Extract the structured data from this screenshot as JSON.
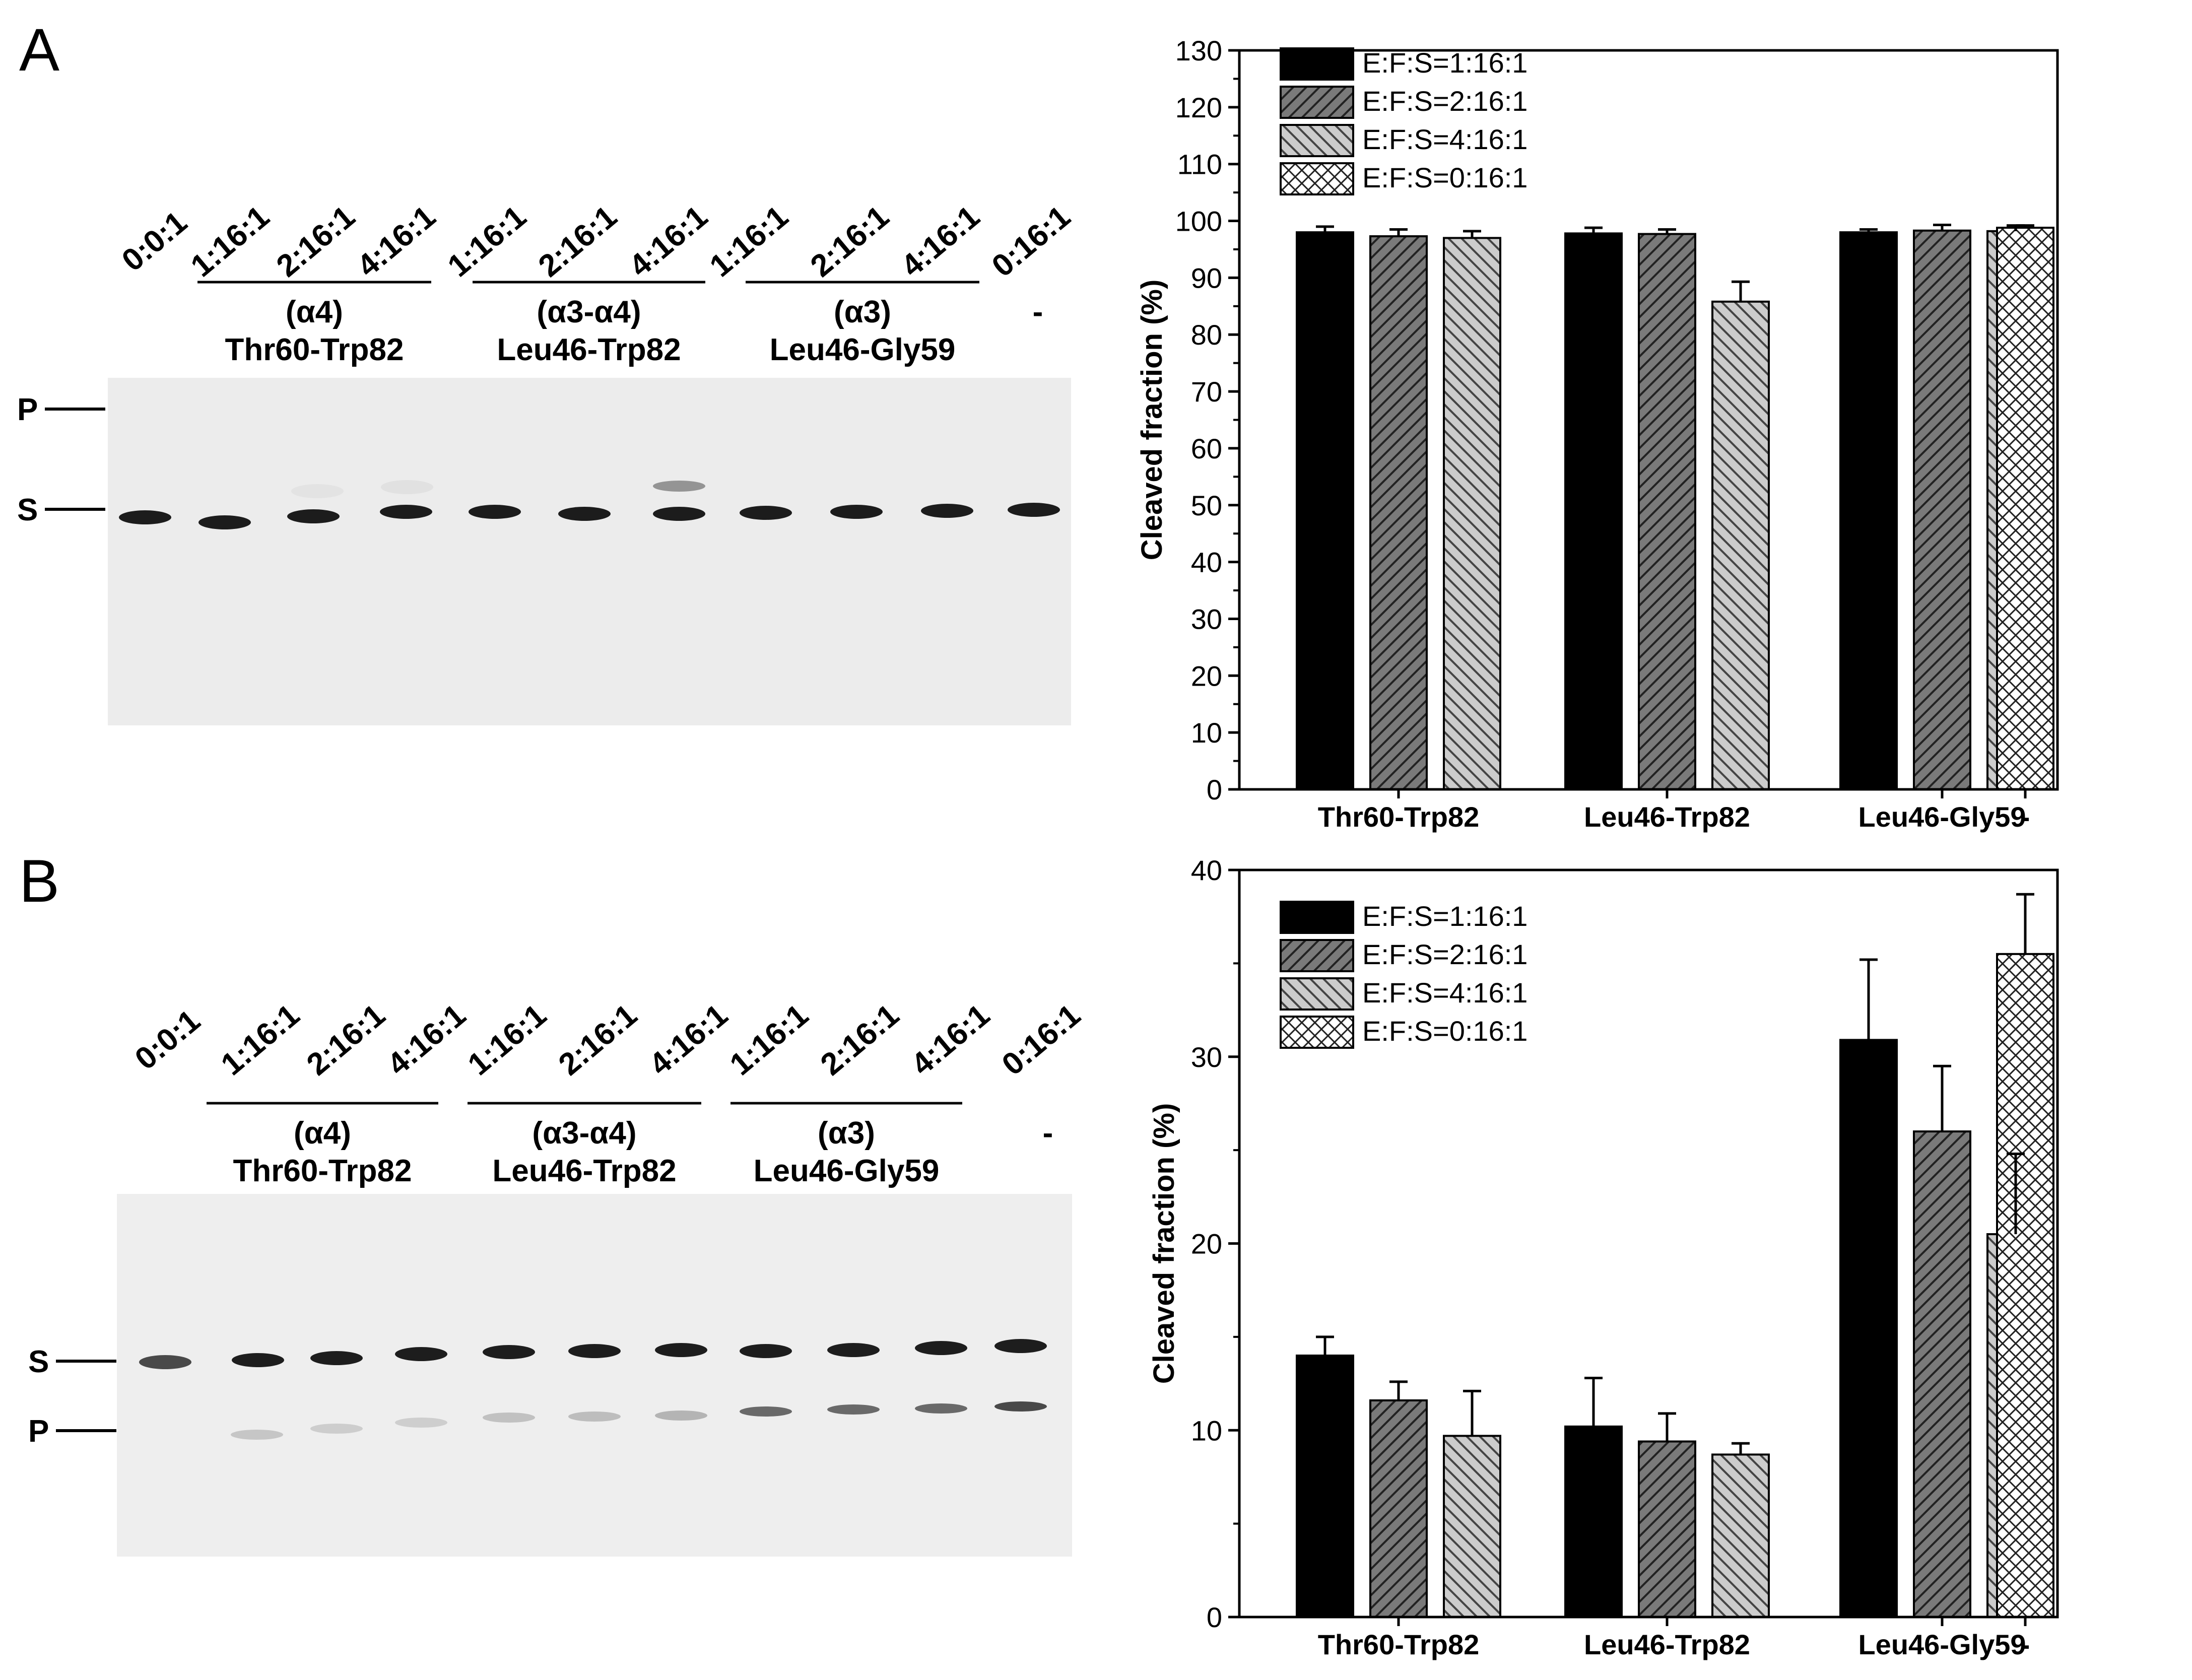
{
  "panels": [
    {
      "letter": "A",
      "gel": {
        "lane_labels": [
          "0:0:1",
          "1:16:1",
          "2:16:1",
          "4:16:1",
          "1:16:1",
          "2:16:1",
          "4:16:1",
          "1:16:1",
          "2:16:1",
          "4:16:1",
          "0:16:1"
        ],
        "groups": [
          {
            "region": "(α4)",
            "name": "Thr60-Trp82"
          },
          {
            "region": "(α3-α4)",
            "name": "Leu46-Trp82"
          },
          {
            "region": "(α3)",
            "name": "Leu46-Gly59"
          },
          {
            "region": "-",
            "name": ""
          }
        ],
        "markers": {
          "substrate": "S",
          "product": "P"
        }
      }
    },
    {
      "letter": "B",
      "gel": {
        "lane_labels": [
          "0:0:1",
          "1:16:1",
          "2:16:1",
          "4:16:1",
          "1:16:1",
          "2:16:1",
          "4:16:1",
          "1:16:1",
          "2:16:1",
          "4:16:1",
          "0:16:1"
        ],
        "groups": [
          {
            "region": "(α4)",
            "name": "Thr60-Trp82"
          },
          {
            "region": "(α3-α4)",
            "name": "Leu46-Trp82"
          },
          {
            "region": "(α3)",
            "name": "Leu46-Gly59"
          },
          {
            "region": "-",
            "name": ""
          }
        ],
        "markers": {
          "substrate": "S",
          "product": "P"
        }
      }
    }
  ],
  "chart_data": [
    {
      "panel": "A",
      "type": "bar",
      "categories": [
        "Thr60-Trp82",
        "Leu46-Trp82",
        "Leu46-Gly59",
        "-"
      ],
      "ylabel": "Cleaved fraction (%)",
      "xlabel": "",
      "ylim": [
        0,
        130
      ],
      "yticks": [
        0,
        10,
        20,
        30,
        40,
        50,
        60,
        70,
        80,
        90,
        100,
        110,
        120,
        130
      ],
      "legend_position": "top-left",
      "series": [
        {
          "name": "E:F:S=1:16:1",
          "values": [
            98.0,
            97.8,
            98.0,
            null
          ],
          "errors": [
            1.0,
            1.0,
            0.5,
            null
          ]
        },
        {
          "name": "E:F:S=2:16:1",
          "values": [
            97.3,
            97.7,
            98.3,
            null
          ],
          "errors": [
            1.2,
            0.8,
            1.0,
            null
          ]
        },
        {
          "name": "E:F:S=4:16:1",
          "values": [
            97.0,
            85.8,
            98.2,
            null
          ],
          "errors": [
            1.2,
            3.5,
            1.0,
            null
          ]
        },
        {
          "name": "E:F:S=0:16:1",
          "values": [
            null,
            null,
            null,
            98.8
          ],
          "errors": [
            null,
            null,
            null,
            0.4
          ]
        }
      ]
    },
    {
      "panel": "B",
      "type": "bar",
      "categories": [
        "Thr60-Trp82",
        "Leu46-Trp82",
        "Leu46-Gly59",
        "-"
      ],
      "ylabel": "Cleaved fraction (%)",
      "xlabel": "",
      "ylim": [
        0,
        40
      ],
      "yticks": [
        0,
        10,
        20,
        30,
        40
      ],
      "legend_position": "top-left",
      "series": [
        {
          "name": "E:F:S=1:16:1",
          "values": [
            14.0,
            10.2,
            30.9,
            null
          ],
          "errors": [
            1.0,
            2.6,
            4.3,
            null
          ]
        },
        {
          "name": "E:F:S=2:16:1",
          "values": [
            11.6,
            9.4,
            26.0,
            null
          ],
          "errors": [
            1.0,
            1.5,
            3.5,
            null
          ]
        },
        {
          "name": "E:F:S=4:16:1",
          "values": [
            9.7,
            8.7,
            20.5,
            null
          ],
          "errors": [
            2.4,
            0.6,
            4.3,
            null
          ]
        },
        {
          "name": "E:F:S=0:16:1",
          "values": [
            null,
            null,
            null,
            35.5
          ],
          "errors": [
            null,
            null,
            null,
            3.2
          ]
        }
      ]
    }
  ],
  "colors": {
    "series_fills": [
      "#000000",
      "#7a7a7a",
      "#c8c8c8",
      "#ffffff"
    ],
    "gel_background": "#ececec",
    "band": "#111111"
  }
}
